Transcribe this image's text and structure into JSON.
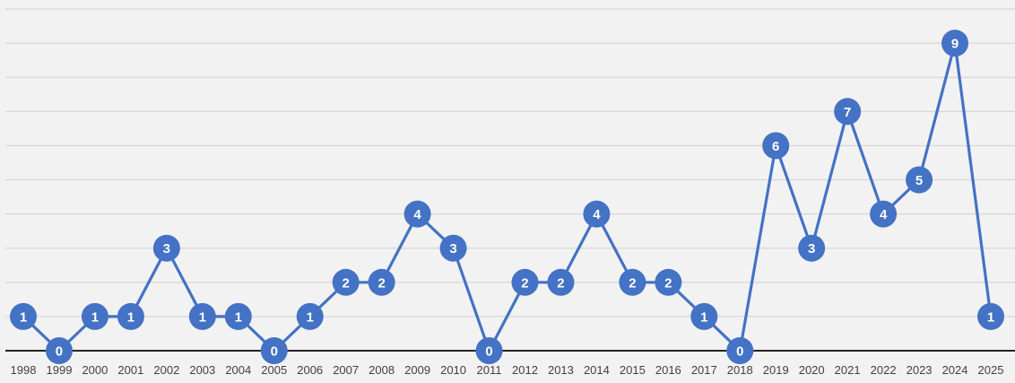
{
  "chart_data": {
    "type": "line",
    "title": "",
    "xlabel": "",
    "ylabel": "",
    "categories": [
      "1998",
      "1999",
      "2000",
      "2001",
      "2002",
      "2003",
      "2004",
      "2005",
      "2006",
      "2007",
      "2008",
      "2009",
      "2010",
      "2011",
      "2012",
      "2013",
      "2014",
      "2015",
      "2016",
      "2017",
      "2018",
      "2019",
      "2020",
      "2021",
      "2022",
      "2023",
      "2024",
      "2025"
    ],
    "series": [
      {
        "values": [
          1,
          0,
          1,
          1,
          3,
          1,
          1,
          0,
          1,
          2,
          2,
          4,
          3,
          0,
          2,
          2,
          4,
          2,
          2,
          1,
          0,
          6,
          3,
          7,
          4,
          5,
          9,
          1
        ],
        "color": "#4472c4"
      }
    ],
    "ylim": [
      0,
      10
    ],
    "grid": true,
    "legend": "none",
    "data_labels": true
  }
}
